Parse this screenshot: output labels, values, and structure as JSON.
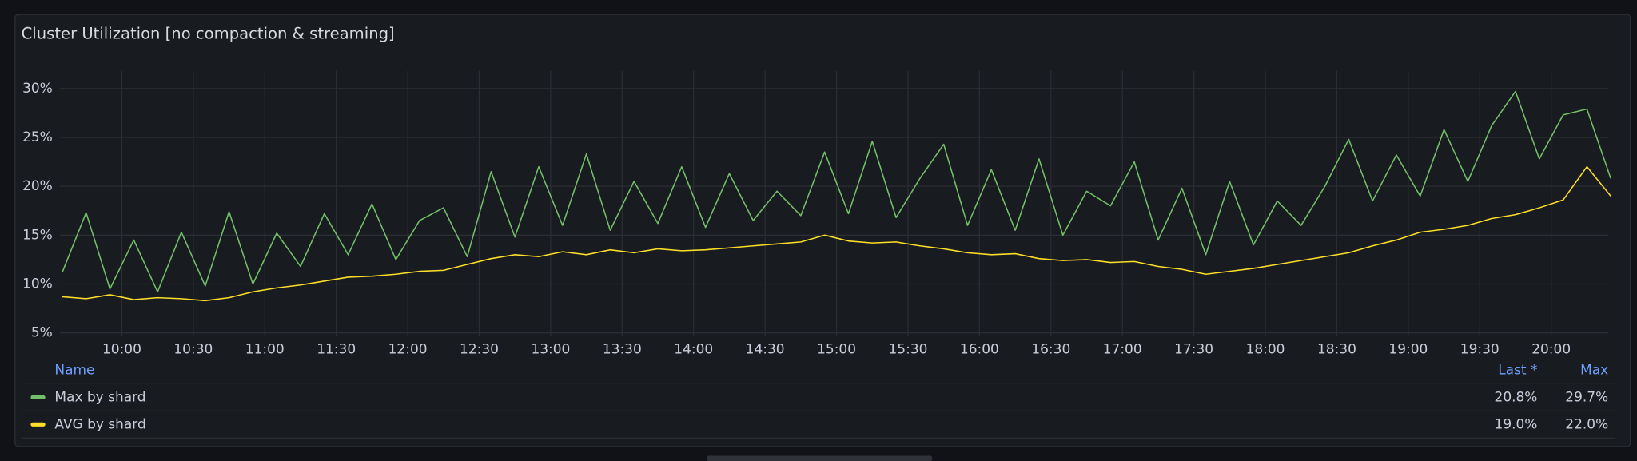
{
  "chart_data": {
    "type": "line",
    "title": "Cluster Utilization [no compaction & streaming]",
    "x": [
      "09:35",
      "09:45",
      "09:55",
      "10:05",
      "10:15",
      "10:25",
      "10:35",
      "10:45",
      "10:55",
      "11:05",
      "11:15",
      "11:25",
      "11:35",
      "11:45",
      "11:55",
      "12:05",
      "12:15",
      "12:25",
      "12:35",
      "12:45",
      "12:55",
      "13:05",
      "13:15",
      "13:25",
      "13:35",
      "13:45",
      "13:55",
      "14:05",
      "14:15",
      "14:25",
      "14:35",
      "14:45",
      "14:55",
      "15:05",
      "15:15",
      "15:25",
      "15:35",
      "15:45",
      "15:55",
      "16:05",
      "16:15",
      "16:25",
      "16:35",
      "16:45",
      "16:55",
      "17:05",
      "17:15",
      "17:25",
      "17:35",
      "17:45",
      "17:55",
      "18:05",
      "18:15",
      "18:25",
      "18:35",
      "18:45",
      "18:55",
      "19:05",
      "19:15",
      "19:25",
      "19:35",
      "19:45",
      "19:55",
      "20:05",
      "20:15",
      "20:25"
    ],
    "xlim": [
      "09:34",
      "20:24"
    ],
    "xticks": [
      "10:00",
      "10:30",
      "11:00",
      "11:30",
      "12:00",
      "12:30",
      "13:00",
      "13:30",
      "14:00",
      "14:30",
      "15:00",
      "15:30",
      "16:00",
      "16:30",
      "17:00",
      "17:30",
      "18:00",
      "18:30",
      "19:00",
      "19:30",
      "20:00"
    ],
    "ylim": [
      4.7,
      31.8
    ],
    "yticks": [
      {
        "value": 5,
        "label": "5%"
      },
      {
        "value": 10,
        "label": "10%"
      },
      {
        "value": 15,
        "label": "15%"
      },
      {
        "value": 20,
        "label": "20%"
      },
      {
        "value": 25,
        "label": "25%"
      },
      {
        "value": 30,
        "label": "30%"
      }
    ],
    "grid": true,
    "legend_columns": [
      "Name",
      "Last *",
      "Max"
    ],
    "series": [
      {
        "name": "Max by shard",
        "color": "#73bf69",
        "last": "20.8%",
        "max": "29.7%",
        "values": [
          11.2,
          17.3,
          9.5,
          14.5,
          9.2,
          15.3,
          9.8,
          17.4,
          10.0,
          15.2,
          11.8,
          17.2,
          13.0,
          18.2,
          12.5,
          16.5,
          17.8,
          12.8,
          21.5,
          14.8,
          22.0,
          16.0,
          23.3,
          15.5,
          20.5,
          16.2,
          22.0,
          15.8,
          21.3,
          16.5,
          19.5,
          17.0,
          23.5,
          17.2,
          24.6,
          16.8,
          20.8,
          24.3,
          16.0,
          21.7,
          15.5,
          22.8,
          15.0,
          19.5,
          18.0,
          22.5,
          14.5,
          19.8,
          13.0,
          20.5,
          14.0,
          18.5,
          16.0,
          20.0,
          24.8,
          18.5,
          23.2,
          19.0,
          25.8,
          20.5,
          26.2,
          29.7,
          22.8,
          27.3,
          27.9,
          20.8
        ]
      },
      {
        "name": "AVG by shard",
        "color": "#fade2a",
        "last": "19.0%",
        "max": "22.0%",
        "values": [
          8.7,
          8.5,
          8.9,
          8.4,
          8.6,
          8.5,
          8.3,
          8.6,
          9.2,
          9.6,
          9.9,
          10.3,
          10.7,
          10.8,
          11.0,
          11.3,
          11.4,
          12.0,
          12.6,
          13.0,
          12.8,
          13.3,
          13.0,
          13.5,
          13.2,
          13.6,
          13.4,
          13.5,
          13.7,
          13.9,
          14.1,
          14.3,
          15.0,
          14.4,
          14.2,
          14.3,
          13.9,
          13.6,
          13.2,
          13.0,
          13.1,
          12.6,
          12.4,
          12.5,
          12.2,
          12.3,
          11.8,
          11.5,
          11.0,
          11.3,
          11.6,
          12.0,
          12.4,
          12.8,
          13.2,
          13.9,
          14.5,
          15.3,
          15.6,
          16.0,
          16.7,
          17.1,
          17.8,
          18.6,
          22.0,
          19.0
        ]
      }
    ]
  }
}
